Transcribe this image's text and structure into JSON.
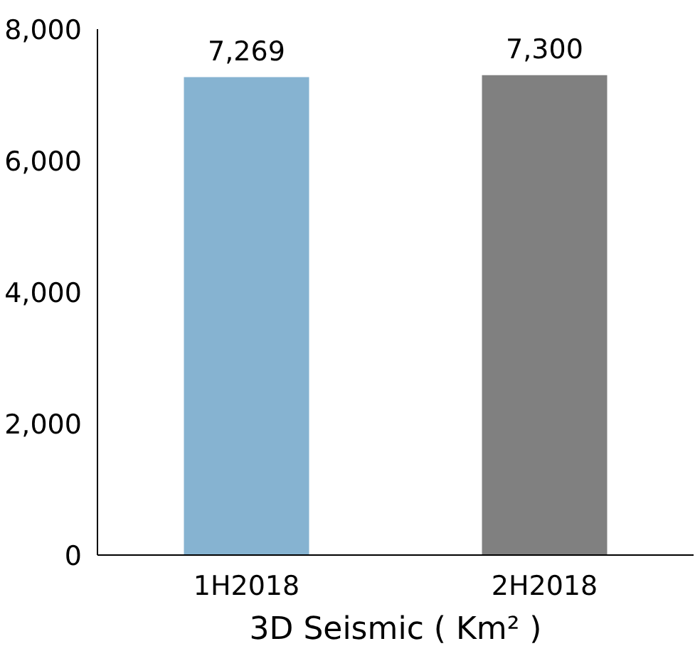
{
  "chart_data": {
    "type": "bar",
    "categories": [
      "1H2018",
      "2H2018"
    ],
    "values": [
      7269,
      7300
    ],
    "colors": [
      "#86b3d1",
      "#808080"
    ],
    "xlabel": "3D Seismic ( Km² )",
    "ylim": [
      0,
      8000
    ],
    "yticks": [
      {
        "value": 0,
        "label": "0"
      },
      {
        "value": 2000,
        "label": "2,000"
      },
      {
        "value": 4000,
        "label": "4,000"
      },
      {
        "value": 6000,
        "label": "6,000"
      },
      {
        "value": 8000,
        "label": "8,000"
      }
    ],
    "value_labels": [
      "7,269",
      "7,300"
    ],
    "grid": false
  }
}
